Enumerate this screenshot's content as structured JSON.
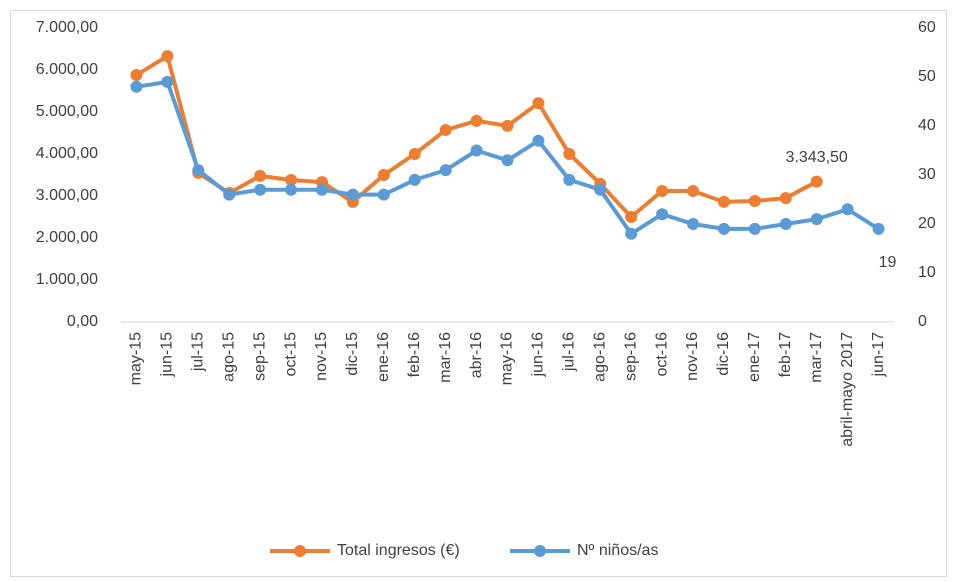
{
  "chart_data": {
    "type": "line",
    "categories": [
      "may-15",
      "jun-15",
      "jul-15",
      "ago-15",
      "sep-15",
      "oct-15",
      "nov-15",
      "dic-15",
      "ene-16",
      "feb-16",
      "mar-16",
      "abr-16",
      "may-16",
      "jun-16",
      "jul-16",
      "ago-16",
      "sep-16",
      "oct-16",
      "nov-16",
      "dic-16",
      "ene-17",
      "feb-17",
      "mar-17",
      "abril-mayo 2017",
      "jun-17"
    ],
    "series": [
      {
        "name": "Total ingresos (€)",
        "color": "#ed7d31",
        "axis": "y",
        "values": [
          5880,
          6330,
          3550,
          3070,
          3480,
          3380,
          3330,
          2860,
          3500,
          4000,
          4570,
          4790,
          4670,
          5210,
          4000,
          3290,
          2500,
          3120,
          3120,
          2860,
          2880,
          2950,
          3343.5,
          null,
          null
        ],
        "value_labels": [
          null,
          null,
          null,
          null,
          null,
          null,
          null,
          null,
          null,
          null,
          null,
          null,
          null,
          null,
          null,
          null,
          null,
          null,
          null,
          null,
          null,
          null,
          "3.343,50",
          null,
          null
        ]
      },
      {
        "name": "Nº niños/as",
        "color": "#5b9bd5",
        "axis": "y2",
        "values": [
          48,
          49,
          31,
          26,
          27,
          27,
          27,
          26,
          26,
          29,
          31,
          35,
          33,
          37,
          29,
          27,
          18,
          22,
          20,
          19,
          19,
          20,
          21,
          23,
          19
        ],
        "value_labels": [
          null,
          null,
          null,
          null,
          null,
          null,
          null,
          null,
          null,
          null,
          null,
          null,
          null,
          null,
          null,
          null,
          null,
          null,
          null,
          null,
          null,
          null,
          null,
          null,
          "19"
        ]
      }
    ],
    "ylim": [
      0,
      7000
    ],
    "yticks": [
      {
        "value": 0,
        "label": "0,00"
      },
      {
        "value": 1000,
        "label": "1.000,00"
      },
      {
        "value": 2000,
        "label": "2.000,00"
      },
      {
        "value": 3000,
        "label": "3.000,00"
      },
      {
        "value": 4000,
        "label": "4.000,00"
      },
      {
        "value": 5000,
        "label": "5.000,00"
      },
      {
        "value": 6000,
        "label": "6.000,00"
      },
      {
        "value": 7000,
        "label": "7.000,00"
      }
    ],
    "y2lim": [
      0,
      60
    ],
    "y2ticks": [
      0,
      10,
      20,
      30,
      40,
      50,
      60
    ],
    "legend": "bottom"
  }
}
